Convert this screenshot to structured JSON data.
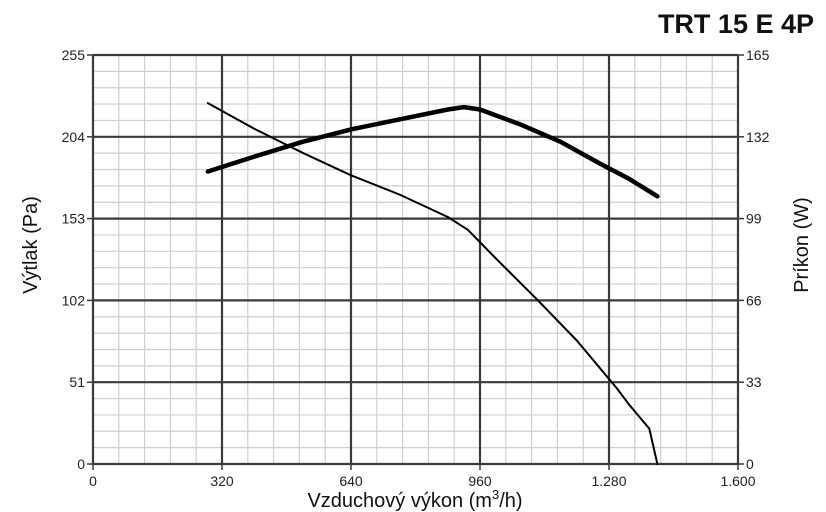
{
  "chart_data": {
    "type": "line",
    "title": "TRT 15 E 4P",
    "xlabel": "Vzduchový výkon (m",
    "xlabel_sup": "3",
    "xlabel_tail": "/h)",
    "ylabel": "Výtlak (Pa)",
    "y2label": "Príkon (W)",
    "xlim": [
      0,
      1600
    ],
    "ylim": [
      0,
      255
    ],
    "y2lim": [
      0,
      165
    ],
    "x_ticks": [
      0,
      320,
      640,
      960,
      1280,
      1600
    ],
    "x_tick_labels": [
      "0",
      "320",
      "640",
      "960",
      "1.280",
      "1.600"
    ],
    "y_ticks": [
      0,
      51,
      102,
      153,
      204,
      255
    ],
    "y_tick_labels": [
      "0",
      "51",
      "102",
      "153",
      "204",
      "255"
    ],
    "y2_ticks": [
      0,
      33,
      66,
      99,
      132,
      165
    ],
    "y2_tick_labels": [
      "0",
      "33",
      "66",
      "99",
      "132",
      "165"
    ],
    "grid": true,
    "series": [
      {
        "axis": "left",
        "points": [
          [
            285,
            225
          ],
          [
            400,
            209
          ],
          [
            520,
            194
          ],
          [
            640,
            180
          ],
          [
            760,
            168
          ],
          [
            880,
            154
          ],
          [
            930,
            146
          ],
          [
            1000,
            128
          ],
          [
            1100,
            103
          ],
          [
            1200,
            77
          ],
          [
            1300,
            47
          ],
          [
            1330,
            37
          ],
          [
            1380,
            22
          ],
          [
            1400,
            0
          ]
        ]
      },
      {
        "axis": "right",
        "points": [
          [
            285,
            118
          ],
          [
            400,
            124
          ],
          [
            520,
            130
          ],
          [
            640,
            135
          ],
          [
            760,
            139
          ],
          [
            880,
            143
          ],
          [
            920,
            144
          ],
          [
            960,
            143
          ],
          [
            1060,
            137
          ],
          [
            1160,
            130
          ],
          [
            1260,
            121
          ],
          [
            1330,
            115
          ],
          [
            1400,
            108
          ]
        ]
      }
    ]
  }
}
